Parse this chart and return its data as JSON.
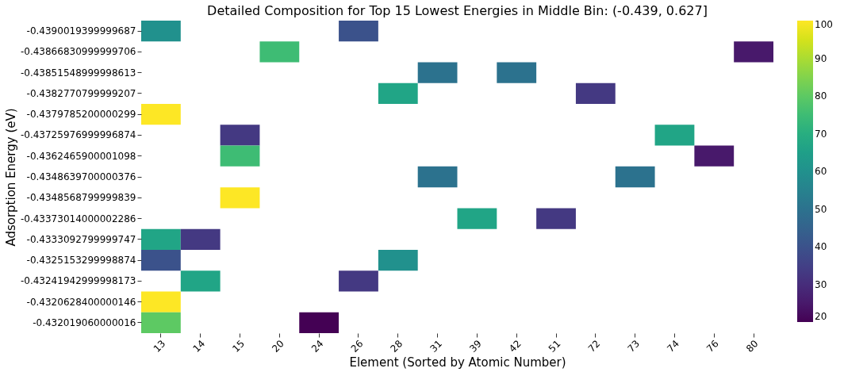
{
  "chart_data": {
    "type": "heatmap",
    "title": "Detailed Composition for Top 15 Lowest Energies in Middle Bin: (-0.439, 0.627]",
    "xlabel": "Element (Sorted by Atomic Number)",
    "ylabel": "Adsorption Energy (eV)",
    "categories": [
      "13",
      "14",
      "15",
      "20",
      "24",
      "26",
      "28",
      "31",
      "39",
      "42",
      "51",
      "72",
      "73",
      "74",
      "76",
      "80"
    ],
    "y_categories": [
      "-0.4390019399999687",
      "-0.43866830999999706",
      "-0.43851548999998613",
      "-0.4382770799999207",
      "-0.4379785200000299",
      "-0.43725976999996874",
      "-0.4362465900001098",
      "-0.4348639700000376",
      "-0.4348568799999839",
      "-0.43373014000002286",
      "-0.4333092799999747",
      "-0.4325153299998874",
      "-0.43241942999998173",
      "-0.4320628400000146",
      "-0.432019060000016"
    ],
    "cells": [
      [
        60,
        null,
        null,
        null,
        null,
        40,
        null,
        null,
        null,
        null,
        null,
        null,
        null,
        null,
        null,
        null
      ],
      [
        null,
        null,
        null,
        75,
        null,
        null,
        null,
        null,
        null,
        null,
        null,
        null,
        null,
        null,
        null,
        25
      ],
      [
        null,
        null,
        null,
        null,
        null,
        null,
        null,
        50,
        null,
        50,
        null,
        null,
        null,
        null,
        null,
        null
      ],
      [
        null,
        null,
        null,
        null,
        null,
        null,
        67,
        null,
        null,
        null,
        null,
        33,
        null,
        null,
        null,
        null
      ],
      [
        100,
        null,
        null,
        null,
        null,
        null,
        null,
        null,
        null,
        null,
        null,
        null,
        null,
        null,
        null,
        null
      ],
      [
        null,
        null,
        33,
        null,
        null,
        null,
        null,
        null,
        null,
        null,
        null,
        null,
        null,
        67,
        null,
        null
      ],
      [
        null,
        null,
        75,
        null,
        null,
        null,
        null,
        null,
        null,
        null,
        null,
        null,
        null,
        null,
        25,
        null
      ],
      [
        null,
        null,
        null,
        null,
        null,
        null,
        null,
        50,
        null,
        null,
        null,
        null,
        50,
        null,
        null,
        null
      ],
      [
        null,
        null,
        100,
        null,
        null,
        null,
        null,
        null,
        null,
        null,
        null,
        null,
        null,
        null,
        null,
        null
      ],
      [
        null,
        null,
        null,
        null,
        null,
        null,
        null,
        null,
        67,
        null,
        33,
        null,
        null,
        null,
        null,
        null
      ],
      [
        67,
        33,
        null,
        null,
        null,
        null,
        null,
        null,
        null,
        null,
        null,
        null,
        null,
        null,
        null,
        null
      ],
      [
        40,
        null,
        null,
        null,
        null,
        null,
        60,
        null,
        null,
        null,
        null,
        null,
        null,
        null,
        null,
        null
      ],
      [
        null,
        67,
        null,
        null,
        null,
        33,
        null,
        null,
        null,
        null,
        null,
        null,
        null,
        null,
        null,
        null
      ],
      [
        100,
        null,
        null,
        null,
        null,
        null,
        null,
        null,
        null,
        null,
        null,
        null,
        null,
        null,
        null,
        null
      ],
      [
        80,
        null,
        null,
        null,
        20,
        null,
        null,
        null,
        null,
        null,
        null,
        null,
        null,
        null,
        null,
        null
      ]
    ],
    "clim": [
      20,
      100
    ],
    "cticks": [
      20,
      30,
      40,
      50,
      60,
      70,
      80,
      90,
      100
    ]
  }
}
